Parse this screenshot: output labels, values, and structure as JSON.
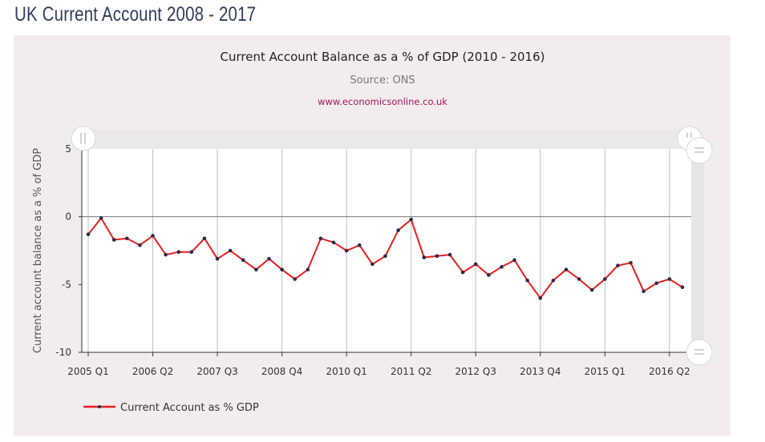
{
  "page": {
    "title": "UK Current Account 2008 - 2017"
  },
  "chart_data": {
    "type": "line",
    "title": "Current Account Balance as a % of GDP (2010 - 2016)",
    "subtitle": "Source: ONS",
    "credit": "www.economicsonline.co.uk",
    "ylabel": "Current account balance as a % of GDP",
    "xlabel": "",
    "ylim": [
      -10,
      5
    ],
    "yticks": [
      -10,
      -5,
      0,
      5
    ],
    "xtick_labels": [
      "2005 Q1",
      "2006 Q2",
      "2007 Q3",
      "2008 Q4",
      "2010 Q1",
      "2011 Q2",
      "2012 Q3",
      "2013 Q4",
      "2015 Q1",
      "2016 Q2"
    ],
    "xtick_indices": [
      0,
      5,
      10,
      15,
      20,
      25,
      30,
      35,
      40,
      45
    ],
    "grid": true,
    "legend_position": "bottom-left",
    "line_color": "#ee1c1c",
    "marker_color": "#2b2b4a",
    "series": [
      {
        "name": "Current Account as % GDP",
        "categories": [
          "2005 Q1",
          "2005 Q2",
          "2005 Q3",
          "2005 Q4",
          "2006 Q1",
          "2006 Q2",
          "2006 Q3",
          "2006 Q4",
          "2007 Q1",
          "2007 Q2",
          "2007 Q3",
          "2007 Q4",
          "2008 Q1",
          "2008 Q2",
          "2008 Q3",
          "2008 Q4",
          "2009 Q1",
          "2009 Q2",
          "2009 Q3",
          "2009 Q4",
          "2010 Q1",
          "2010 Q2",
          "2010 Q3",
          "2010 Q4",
          "2011 Q1",
          "2011 Q2",
          "2011 Q3",
          "2011 Q4",
          "2012 Q1",
          "2012 Q2",
          "2012 Q3",
          "2012 Q4",
          "2013 Q1",
          "2013 Q2",
          "2013 Q3",
          "2013 Q4",
          "2014 Q1",
          "2014 Q2",
          "2014 Q3",
          "2014 Q4",
          "2015 Q1",
          "2015 Q2",
          "2015 Q3",
          "2015 Q4",
          "2016 Q1",
          "2016 Q2",
          "2016 Q3"
        ],
        "values": [
          -1.3,
          -0.1,
          -1.7,
          -1.6,
          -2.1,
          -1.4,
          -2.8,
          -2.6,
          -2.6,
          -1.6,
          -3.1,
          -2.5,
          -3.2,
          -3.9,
          -3.1,
          -3.9,
          -4.6,
          -3.9,
          -1.6,
          -1.9,
          -2.5,
          -2.1,
          -3.5,
          -2.9,
          -1.0,
          -0.2,
          -3.0,
          -2.9,
          -2.8,
          -4.1,
          -3.5,
          -4.3,
          -3.7,
          -3.2,
          -4.7,
          -6.0,
          -4.7,
          -3.9,
          -4.6,
          -5.4,
          -4.6,
          -3.6,
          -3.4,
          -5.5,
          -4.9,
          -4.6,
          -5.2
        ]
      }
    ]
  }
}
